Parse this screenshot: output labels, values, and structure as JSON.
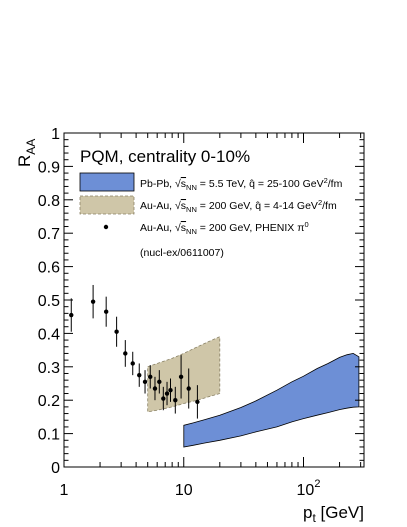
{
  "chart_data": {
    "type": "scatter",
    "title": "PQM, centrality 0-10%",
    "xlabel": {
      "main": "p",
      "sub": "t",
      "unit": " [GeV]"
    },
    "ylabel": {
      "main": "R",
      "sub": "AA"
    },
    "xscale": "log",
    "xlim": [
      1,
      320
    ],
    "ylim": [
      0,
      1
    ],
    "grid": false,
    "legend_position": "top",
    "x_tick_labels": [
      {
        "value": 1,
        "label": "1"
      },
      {
        "value": 10,
        "label": "10"
      },
      {
        "value": 100,
        "label": "10",
        "sup": "2"
      }
    ],
    "y_tick_labels": [
      "0",
      "0.1",
      "0.2",
      "0.3",
      "0.4",
      "0.5",
      "0.6",
      "0.7",
      "0.8",
      "0.9",
      "1"
    ],
    "legend": [
      {
        "series": "pbpb",
        "prefix": "Pb-Pb, ",
        "snn": "NN",
        "rest": " = 5.5 TeV, ",
        "qhat": " = 25-100 GeV",
        "qsup": "2",
        "qtail": "/fm"
      },
      {
        "series": "auau_band",
        "prefix": "Au-Au, ",
        "snn": "NN",
        "rest": " = 200 GeV, ",
        "qhat": " = 4-14 GeV",
        "qsup": "2",
        "qtail": "/fm"
      },
      {
        "series": "phenix",
        "prefix": "Au-Au, ",
        "snn": "NN",
        "rest": " = 200 GeV, PHENIX ",
        "pi": "π",
        "pisup": "0"
      }
    ],
    "reference": "(nucl-ex/0611007)",
    "colors": {
      "pbpb_fill": "#6d8fd6",
      "auau_fill": "#cfc6a8",
      "auau_stroke": "#8a8266",
      "points": "#000000"
    },
    "series": [
      {
        "id": "pbpb",
        "kind": "band",
        "x": [
          10,
          12,
          15,
          20,
          30,
          40,
          60,
          80,
          100,
          130,
          160,
          200,
          230,
          260,
          290
        ],
        "lower": [
          0.06,
          0.065,
          0.072,
          0.08,
          0.093,
          0.105,
          0.12,
          0.135,
          0.145,
          0.155,
          0.163,
          0.172,
          0.176,
          0.179,
          0.18
        ],
        "upper": [
          0.125,
          0.132,
          0.142,
          0.155,
          0.178,
          0.198,
          0.23,
          0.255,
          0.272,
          0.295,
          0.31,
          0.328,
          0.336,
          0.34,
          0.33
        ]
      },
      {
        "id": "auau_band",
        "kind": "band",
        "x": [
          5,
          6,
          8,
          10,
          13,
          16,
          20
        ],
        "lower": [
          0.165,
          0.17,
          0.18,
          0.19,
          0.2,
          0.21,
          0.22
        ],
        "upper": [
          0.3,
          0.31,
          0.325,
          0.34,
          0.36,
          0.375,
          0.39
        ]
      },
      {
        "id": "phenix",
        "kind": "points",
        "points": [
          {
            "x": 1.15,
            "y": 0.455,
            "err": 0.05
          },
          {
            "x": 1.75,
            "y": 0.495,
            "err": 0.05
          },
          {
            "x": 2.25,
            "y": 0.465,
            "err": 0.045
          },
          {
            "x": 2.75,
            "y": 0.405,
            "err": 0.045
          },
          {
            "x": 3.25,
            "y": 0.34,
            "err": 0.04
          },
          {
            "x": 3.75,
            "y": 0.31,
            "err": 0.035
          },
          {
            "x": 4.25,
            "y": 0.275,
            "err": 0.035
          },
          {
            "x": 4.75,
            "y": 0.255,
            "err": 0.035
          },
          {
            "x": 5.25,
            "y": 0.27,
            "err": 0.035
          },
          {
            "x": 5.75,
            "y": 0.235,
            "err": 0.035
          },
          {
            "x": 6.25,
            "y": 0.255,
            "err": 0.035
          },
          {
            "x": 6.75,
            "y": 0.205,
            "err": 0.035
          },
          {
            "x": 7.25,
            "y": 0.22,
            "err": 0.035
          },
          {
            "x": 7.75,
            "y": 0.23,
            "err": 0.035
          },
          {
            "x": 8.5,
            "y": 0.2,
            "err": 0.04
          },
          {
            "x": 9.5,
            "y": 0.27,
            "err": 0.065
          },
          {
            "x": 11,
            "y": 0.235,
            "err": 0.06
          },
          {
            "x": 13,
            "y": 0.195,
            "err": 0.05
          }
        ]
      }
    ]
  }
}
